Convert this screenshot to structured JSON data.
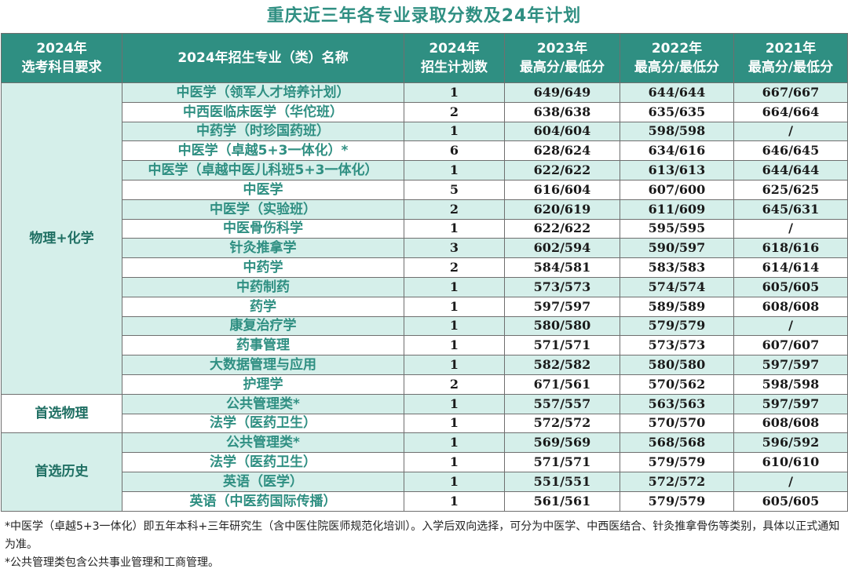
{
  "title": "重庆近三年各专业录取分数及24年计划",
  "headers": {
    "req": [
      "2024年",
      "选考科目要求"
    ],
    "major": "2024年招生专业（类）名称",
    "plan": [
      "2024年",
      "招生计划数"
    ],
    "y2023": [
      "2023年",
      "最高分/最低分"
    ],
    "y2022": [
      "2022年",
      "最高分/最低分"
    ],
    "y2021": [
      "2021年",
      "最高分/最低分"
    ]
  },
  "groups": [
    {
      "req": "物理+化学",
      "rows": [
        {
          "major": "中医学（领军人才培养计划）",
          "plan": "1",
          "y2023": "649/649",
          "y2022": "644/644",
          "y2021": "667/667"
        },
        {
          "major": "中西医临床医学（华佗班）",
          "plan": "2",
          "y2023": "638/638",
          "y2022": "635/635",
          "y2021": "664/664"
        },
        {
          "major": "中药学（时珍国药班）",
          "plan": "1",
          "y2023": "604/604",
          "y2022": "598/598",
          "y2021": "/"
        },
        {
          "major": "中医学（卓越5+3一体化）*",
          "plan": "6",
          "y2023": "628/624",
          "y2022": "634/616",
          "y2021": "646/645"
        },
        {
          "major": "中医学（卓越中医儿科班5+3一体化）",
          "plan": "1",
          "y2023": "622/622",
          "y2022": "613/613",
          "y2021": "644/644"
        },
        {
          "major": "中医学",
          "plan": "5",
          "y2023": "616/604",
          "y2022": "607/600",
          "y2021": "625/625"
        },
        {
          "major": "中医学（实验班）",
          "plan": "2",
          "y2023": "620/619",
          "y2022": "611/609",
          "y2021": "645/631"
        },
        {
          "major": "中医骨伤科学",
          "plan": "1",
          "y2023": "622/622",
          "y2022": "595/595",
          "y2021": "/"
        },
        {
          "major": "针灸推拿学",
          "plan": "3",
          "y2023": "602/594",
          "y2022": "590/597",
          "y2021": "618/616"
        },
        {
          "major": "中药学",
          "plan": "2",
          "y2023": "584/581",
          "y2022": "583/583",
          "y2021": "614/614"
        },
        {
          "major": "中药制药",
          "plan": "1",
          "y2023": "573/573",
          "y2022": "574/574",
          "y2021": "605/605"
        },
        {
          "major": "药学",
          "plan": "1",
          "y2023": "597/597",
          "y2022": "589/589",
          "y2021": "608/608"
        },
        {
          "major": "康复治疗学",
          "plan": "1",
          "y2023": "580/580",
          "y2022": "579/579",
          "y2021": "/"
        },
        {
          "major": "药事管理",
          "plan": "1",
          "y2023": "571/571",
          "y2022": "573/573",
          "y2021": "607/607"
        },
        {
          "major": "大数据管理与应用",
          "plan": "1",
          "y2023": "582/582",
          "y2022": "580/580",
          "y2021": "597/597"
        },
        {
          "major": "护理学",
          "plan": "2",
          "y2023": "671/561",
          "y2022": "570/562",
          "y2021": "598/598"
        }
      ]
    },
    {
      "req": "首选物理",
      "rows": [
        {
          "major": "公共管理类*",
          "plan": "1",
          "y2023": "557/557",
          "y2022": "563/563",
          "y2021": "597/597"
        },
        {
          "major": "法学（医药卫生）",
          "plan": "1",
          "y2023": "572/572",
          "y2022": "570/570",
          "y2021": "608/608"
        }
      ]
    },
    {
      "req": "首选历史",
      "rows": [
        {
          "major": "公共管理类*",
          "plan": "1",
          "y2023": "569/569",
          "y2022": "568/568",
          "y2021": "596/592"
        },
        {
          "major": "法学（医药卫生）",
          "plan": "1",
          "y2023": "571/571",
          "y2022": "579/579",
          "y2021": "610/610"
        },
        {
          "major": "英语（医学）",
          "plan": "1",
          "y2023": "551/551",
          "y2022": "572/572",
          "y2021": "/"
        },
        {
          "major": "英语（中医药国际传播）",
          "plan": "1",
          "y2023": "561/561",
          "y2022": "579/579",
          "y2021": "605/605"
        }
      ]
    }
  ],
  "notes": [
    "*中医学（卓越5+3一体化）即五年本科+三年研究生（含中医住院医师规范化培训）。入学后双向选择，可分为中医学、中西医结合、针灸推拿骨伤等类别，具体以正式通知为准。",
    "*公共管理类包含公共事业管理和工商管理。"
  ],
  "colors": {
    "header_bg": "#2f8f82",
    "stripe": "#d5efea",
    "accent_text": "#2f8f82"
  }
}
